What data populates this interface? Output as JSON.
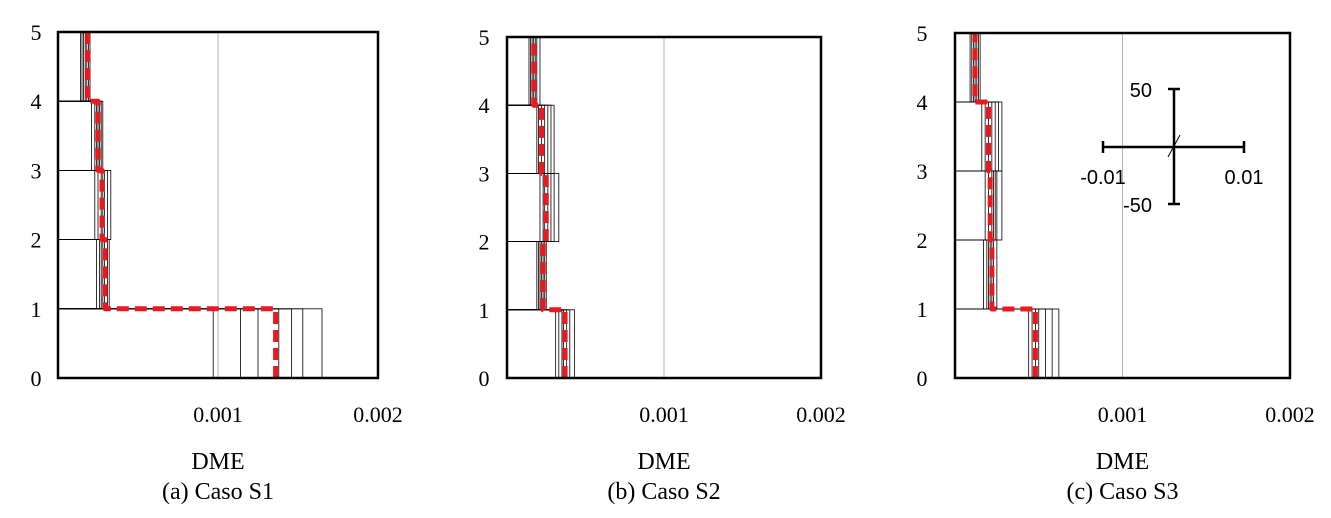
{
  "chart_data": [
    {
      "type": "line",
      "title": "",
      "caption": "(a) Caso S1",
      "xlabel": "DME",
      "ylabel": "",
      "xlim": [
        0,
        0.002
      ],
      "ylim": [
        0,
        5
      ],
      "x_ticks": [
        "0.001",
        "0.002"
      ],
      "x_tick_values": [
        0.001,
        0.002
      ],
      "y_ticks": [
        "0",
        "1",
        "2",
        "3",
        "4",
        "5"
      ],
      "grid": "vertical line at 0.001",
      "series": [
        {
          "style": "individual records (thin black step profiles)",
          "values_by_storey": [
            {
              "storey": "0-1",
              "dme": [
                0.00097,
                0.00114,
                0.00125,
                0.00138,
                0.00146,
                0.00153,
                0.00165
              ]
            },
            {
              "storey": "1-2",
              "dme": [
                0.00024,
                0.00026,
                0.00027,
                0.00028,
                0.00029,
                0.00031,
                0.00032
              ]
            },
            {
              "storey": "2-3",
              "dme": [
                0.00023,
                0.00025,
                0.00027,
                0.00028,
                0.00029,
                0.00031,
                0.00033
              ]
            },
            {
              "storey": "3-4",
              "dme": [
                0.00021,
                0.00023,
                0.00024,
                0.00025,
                0.00026,
                0.00027,
                0.00028
              ]
            },
            {
              "storey": "4-5",
              "dme": [
                0.00014,
                0.00015,
                0.00016,
                0.00017,
                0.00018,
                0.00019,
                0.0002
              ]
            }
          ]
        },
        {
          "style": "mean (red dashed step profile)",
          "color": "#e8191f",
          "values_by_storey": [
            0.00136,
            0.000295,
            0.000275,
            0.00025,
            0.000185
          ]
        }
      ]
    },
    {
      "type": "line",
      "title": "",
      "caption": "(b) Caso S2",
      "xlabel": "DME",
      "ylabel": "",
      "xlim": [
        0,
        0.002
      ],
      "ylim": [
        0,
        5
      ],
      "x_ticks": [
        "0.001",
        "0.002"
      ],
      "x_tick_values": [
        0.001,
        0.002
      ],
      "y_ticks": [
        "0",
        "1",
        "2",
        "3",
        "4",
        "5"
      ],
      "grid": "vertical line at 0.001",
      "series": [
        {
          "style": "individual records (thin black step profiles)",
          "values_by_storey": [
            {
              "storey": "0-1",
              "dme": [
                0.00031,
                0.00033,
                0.00035,
                0.00036,
                0.00038,
                0.0004,
                0.00043
              ]
            },
            {
              "storey": "1-2",
              "dme": [
                0.00019,
                0.0002,
                0.00021,
                0.00022,
                0.00023,
                0.00024,
                0.00025
              ]
            },
            {
              "storey": "2-3",
              "dme": [
                0.00021,
                0.00023,
                0.00024,
                0.00026,
                0.00028,
                0.0003,
                0.00033
              ]
            },
            {
              "storey": "3-4",
              "dme": [
                0.00019,
                0.0002,
                0.00022,
                0.00024,
                0.00026,
                0.00028,
                0.0003
              ]
            },
            {
              "storey": "4-5",
              "dme": [
                0.00014,
                0.00015,
                0.00016,
                0.00017,
                0.00018,
                0.00019,
                0.00021
              ]
            }
          ]
        },
        {
          "style": "mean (red dashed step profile)",
          "color": "#e8191f",
          "values_by_storey": [
            0.00037,
            0.00023,
            0.00025,
            0.00022,
            0.00017
          ]
        }
      ]
    },
    {
      "type": "line",
      "title": "",
      "caption": "(c) Caso S3",
      "xlabel": "DME",
      "ylabel": "",
      "xlim": [
        0,
        0.002
      ],
      "ylim": [
        0,
        5
      ],
      "x_ticks": [
        "0.001",
        "0.002"
      ],
      "x_tick_values": [
        0.001,
        0.002
      ],
      "y_ticks": [
        "0",
        "1",
        "2",
        "3",
        "4",
        "5"
      ],
      "grid": "vertical line at 0.001",
      "inset": {
        "description": "cross-shaped reference scale",
        "x_labels": [
          "-0.01",
          "0.01"
        ],
        "y_labels": [
          "50",
          "-50"
        ]
      },
      "series": [
        {
          "style": "individual records (thin black step profiles)",
          "values_by_storey": [
            {
              "storey": "0-1",
              "dme": [
                0.00044,
                0.00046,
                0.00048,
                0.0005,
                0.00054,
                0.00058,
                0.00062
              ]
            },
            {
              "storey": "1-2",
              "dme": [
                0.00017,
                0.00019,
                0.0002,
                0.00021,
                0.00022,
                0.00023,
                0.00025
              ]
            },
            {
              "storey": "2-3",
              "dme": [
                0.00018,
                0.0002,
                0.00022,
                0.00023,
                0.00024,
                0.00025,
                0.00028
              ]
            },
            {
              "storey": "3-4",
              "dme": [
                0.00016,
                0.00018,
                0.0002,
                0.00022,
                0.00024,
                0.00026,
                0.00028
              ]
            },
            {
              "storey": "4-5",
              "dme": [
                9e-05,
                0.0001,
                0.00011,
                0.00012,
                0.00013,
                0.00014,
                0.00015
              ]
            }
          ]
        },
        {
          "style": "mean (red dashed step profile)",
          "color": "#e8191f",
          "values_by_storey": [
            0.00048,
            0.00022,
            0.00021,
            0.0002,
            0.00012
          ]
        }
      ]
    }
  ]
}
